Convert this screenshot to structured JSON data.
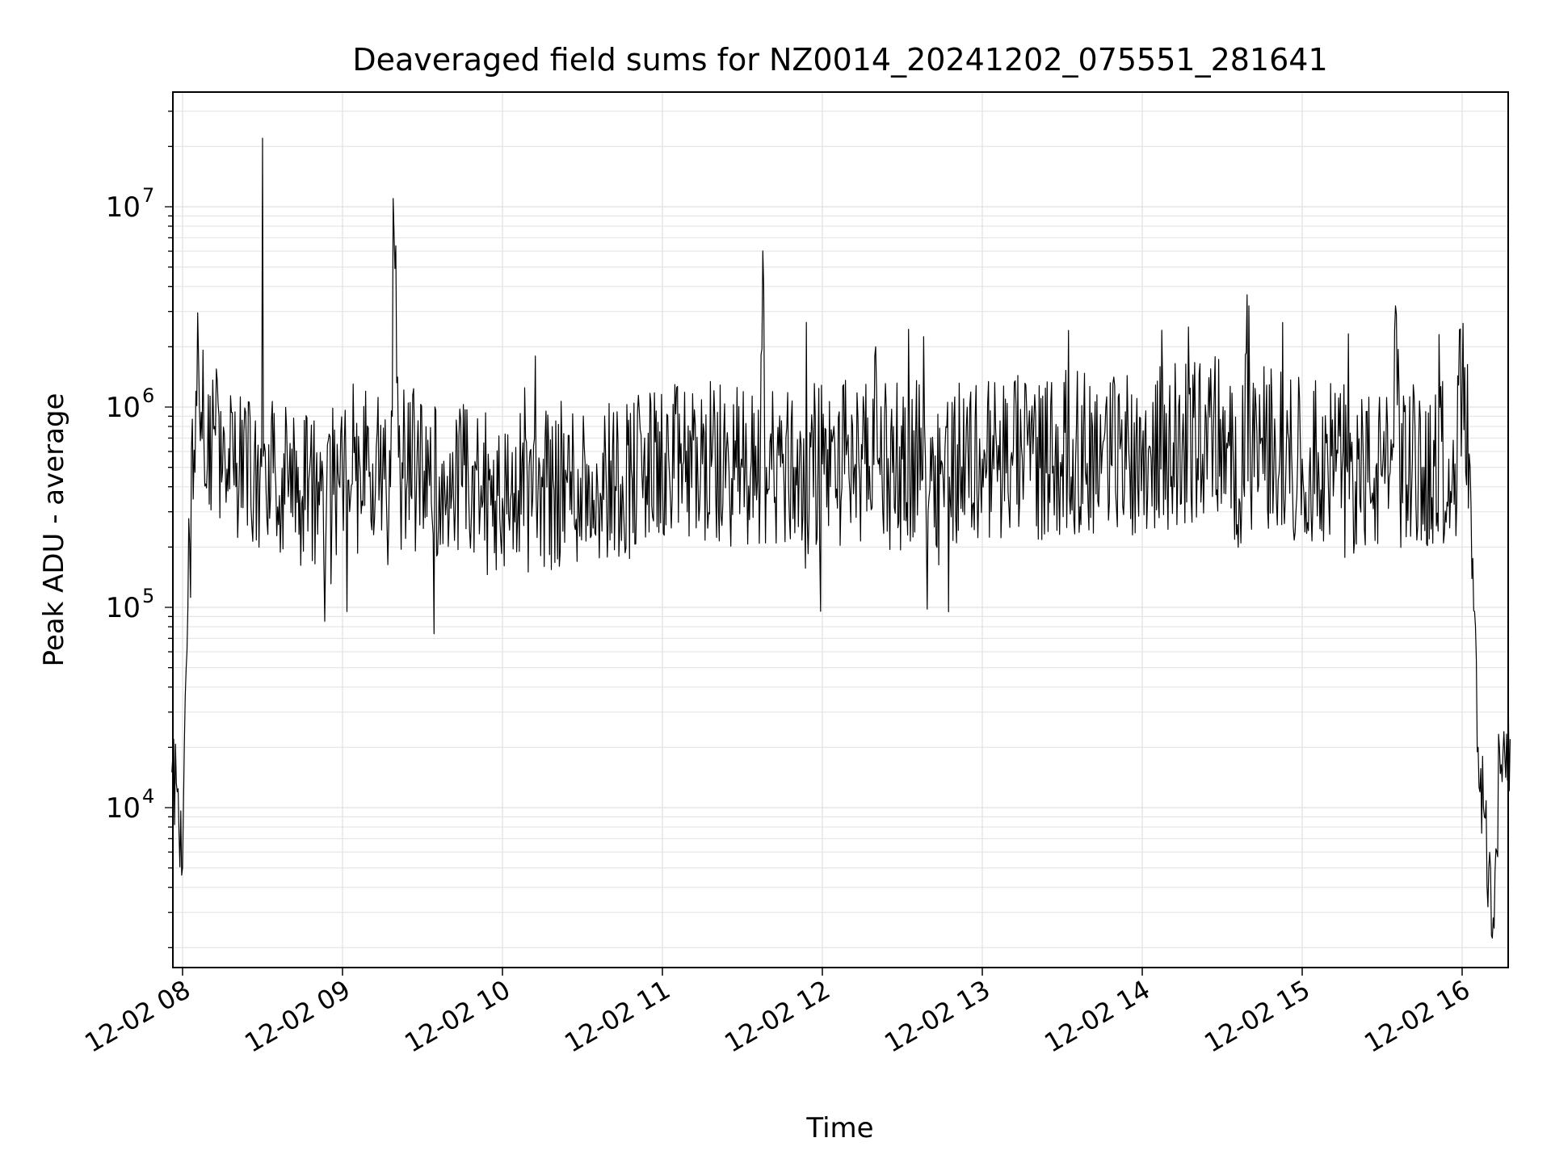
{
  "chart_data": {
    "type": "line",
    "title": "Deaveraged field sums for NZ0014_20241202_075551_281641",
    "xlabel": "Time",
    "ylabel": "Peak ADU - average",
    "yscale": "log",
    "ylim": [
      1600,
      33000000
    ],
    "grid": true,
    "x_ticks": [
      "12-02 08",
      "12-02 09",
      "12-02 10",
      "12-02 11",
      "12-02 12",
      "12-02 13",
      "12-02 14",
      "12-02 15",
      "12-02 16"
    ],
    "y_ticks": [
      {
        "base": "10",
        "exp": "4",
        "value": 10000
      },
      {
        "base": "10",
        "exp": "5",
        "value": 100000
      },
      {
        "base": "10",
        "exp": "6",
        "value": 1000000
      },
      {
        "base": "10",
        "exp": "7",
        "value": 10000000
      }
    ],
    "line_color": "#000000",
    "grid_color": "#e6e6e6",
    "series": [
      {
        "x": [
          "07:56",
          "07:58",
          "08:00",
          "08:02",
          "08:05",
          "08:08",
          "08:12",
          "08:16",
          "08:20",
          "08:24",
          "08:28",
          "08:30",
          "08:31",
          "08:35",
          "08:40",
          "08:50",
          "09:00",
          "09:10",
          "09:18",
          "09:19",
          "09:30",
          "09:45",
          "10:00",
          "10:15",
          "10:30",
          "10:45",
          "11:00",
          "11:15",
          "11:30",
          "11:38",
          "11:39",
          "11:50",
          "12:00",
          "12:15",
          "12:20",
          "12:30",
          "12:45",
          "13:00",
          "13:15",
          "13:30",
          "13:45",
          "14:00",
          "14:15",
          "14:30",
          "14:40",
          "14:45",
          "14:50",
          "15:00",
          "15:15",
          "15:30",
          "15:35",
          "15:45",
          "15:55",
          "16:00",
          "16:03",
          "16:06",
          "16:08",
          "16:10",
          "16:12",
          "16:14",
          "16:16",
          "16:18"
        ],
        "y": [
          15000,
          12000,
          5000,
          100000,
          1200000,
          700000,
          800000,
          500000,
          400000,
          600000,
          500000,
          22000000,
          600000,
          400000,
          450000,
          400000,
          420000,
          450000,
          400000,
          11000000,
          450000,
          400000,
          350000,
          400000,
          420000,
          450000,
          500000,
          520000,
          500000,
          4000000,
          500000,
          500000,
          520000,
          550000,
          2000000,
          550000,
          520000,
          550000,
          560000,
          580000,
          600000,
          600000,
          650000,
          750000,
          3200000,
          700000,
          600000,
          550000,
          500000,
          450000,
          3200000,
          500000,
          550000,
          1200000,
          500000,
          20000,
          10000,
          5000,
          2500,
          20000,
          18000,
          22000
        ]
      }
    ]
  }
}
